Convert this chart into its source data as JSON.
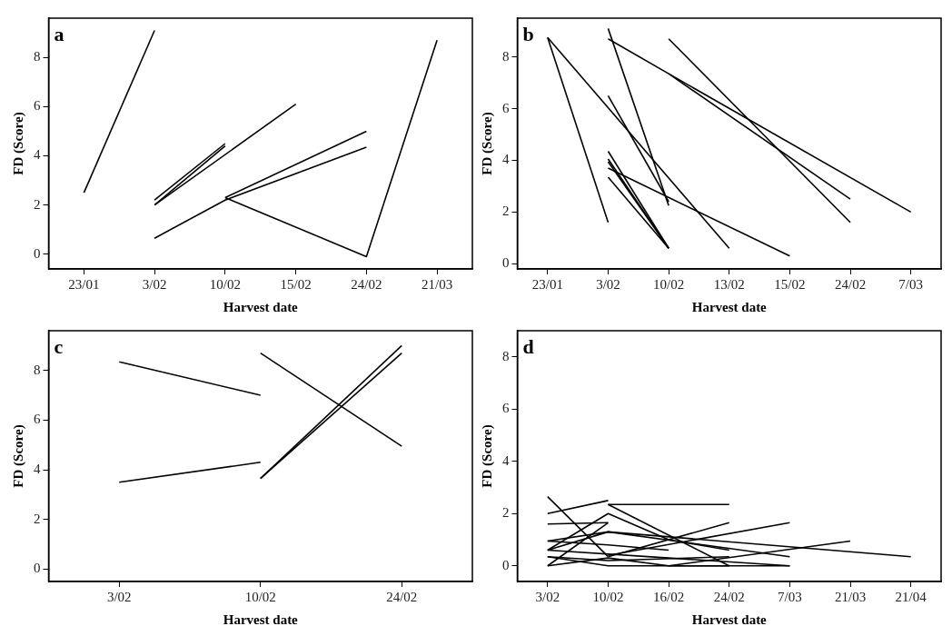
{
  "chart_data": [
    {
      "type": "line",
      "annotations": [
        "a"
      ],
      "xlabel": "Harvest date",
      "ylabel": "FD (Score)",
      "categories": [
        "23/01",
        "3/02",
        "10/02",
        "15/02",
        "24/02",
        "21/03"
      ],
      "ylim": [
        -0.6,
        9.6
      ],
      "yticks": [
        0,
        2,
        4,
        6,
        8
      ],
      "grid": false,
      "legend": false,
      "series": [
        {
          "color": "#000000",
          "x": [
            "23/01",
            "3/02"
          ],
          "values": [
            2.5,
            9.1
          ]
        },
        {
          "color": "#000000",
          "x": [
            "3/02",
            "10/02"
          ],
          "values": [
            2.2,
            4.5
          ]
        },
        {
          "color": "#000000",
          "x": [
            "3/02",
            "10/02"
          ],
          "values": [
            2.0,
            4.4
          ]
        },
        {
          "color": "#000000",
          "x": [
            "3/02",
            "15/02"
          ],
          "values": [
            2.0,
            6.1
          ]
        },
        {
          "color": "#000000",
          "x": [
            "3/02",
            "10/02",
            "24/02"
          ],
          "values": [
            0.65,
            2.2,
            4.35
          ]
        },
        {
          "color": "#000000",
          "x": [
            "10/02",
            "24/02"
          ],
          "values": [
            2.3,
            5.0
          ]
        },
        {
          "color": "#000000",
          "x": [
            "10/02",
            "24/02",
            "21/03"
          ],
          "values": [
            2.3,
            -0.1,
            8.7
          ]
        }
      ]
    },
    {
      "type": "line",
      "annotations": [
        "b"
      ],
      "xlabel": "Harvest date",
      "ylabel": "FD (Score)",
      "categories": [
        "23/01",
        "3/02",
        "10/02",
        "13/02",
        "15/02",
        "24/02",
        "7/03"
      ],
      "ylim": [
        -0.2,
        9.5
      ],
      "yticks": [
        0,
        2,
        4,
        6,
        8
      ],
      "grid": false,
      "legend": false,
      "series": [
        {
          "color": "#000000",
          "x": [
            "23/01",
            "3/02"
          ],
          "values": [
            8.75,
            1.6
          ]
        },
        {
          "color": "#000000",
          "x": [
            "23/01",
            "13/02"
          ],
          "values": [
            8.75,
            0.6
          ]
        },
        {
          "color": "#000000",
          "x": [
            "3/02",
            "10/02"
          ],
          "values": [
            9.1,
            2.25
          ]
        },
        {
          "color": "#000000",
          "x": [
            "3/02",
            "10/02",
            "24/02"
          ],
          "values": [
            8.7,
            7.35,
            2.5
          ]
        },
        {
          "color": "#000000",
          "x": [
            "10/02",
            "7/03"
          ],
          "values": [
            7.35,
            2.0
          ]
        },
        {
          "color": "#000000",
          "x": [
            "10/02",
            "24/02"
          ],
          "values": [
            8.7,
            1.6
          ]
        },
        {
          "color": "#000000",
          "x": [
            "3/02",
            "10/02"
          ],
          "values": [
            6.5,
            2.4
          ]
        },
        {
          "color": "#000000",
          "x": [
            "3/02",
            "15/02"
          ],
          "values": [
            3.7,
            0.3
          ]
        },
        {
          "color": "#000000",
          "x": [
            "3/02",
            "10/02"
          ],
          "values": [
            4.35,
            0.6
          ]
        },
        {
          "color": "#000000",
          "x": [
            "3/02",
            "10/02"
          ],
          "values": [
            4.05,
            0.6
          ]
        },
        {
          "color": "#000000",
          "x": [
            "3/02",
            "10/02"
          ],
          "values": [
            3.95,
            0.6
          ]
        },
        {
          "color": "#000000",
          "x": [
            "3/02",
            "10/02"
          ],
          "values": [
            3.35,
            0.6
          ]
        }
      ]
    },
    {
      "type": "line",
      "annotations": [
        "c"
      ],
      "xlabel": "Harvest date",
      "ylabel": "FD (Score)",
      "categories": [
        "3/02",
        "10/02",
        "24/02"
      ],
      "ylim": [
        -0.5,
        9.6
      ],
      "yticks": [
        0,
        2,
        4,
        6,
        8
      ],
      "grid": false,
      "legend": false,
      "series": [
        {
          "color": "#000000",
          "x": [
            "3/02",
            "10/02"
          ],
          "values": [
            8.35,
            7.0
          ]
        },
        {
          "color": "#000000",
          "x": [
            "3/02",
            "10/02"
          ],
          "values": [
            3.5,
            4.3
          ]
        },
        {
          "color": "#000000",
          "x": [
            "10/02",
            "24/02"
          ],
          "values": [
            8.7,
            4.95
          ]
        },
        {
          "color": "#000000",
          "x": [
            "10/02",
            "24/02"
          ],
          "values": [
            3.65,
            9.0
          ]
        },
        {
          "color": "#000000",
          "x": [
            "10/02",
            "24/02"
          ],
          "values": [
            3.65,
            8.7
          ]
        }
      ]
    },
    {
      "type": "line",
      "annotations": [
        "d"
      ],
      "xlabel": "Harvest date",
      "ylabel": "FD (Score)",
      "categories": [
        "3/02",
        "10/02",
        "16/02",
        "24/02",
        "7/03",
        "21/03",
        "21/04"
      ],
      "ylim": [
        -0.6,
        9.0
      ],
      "yticks": [
        0,
        2,
        4,
        6,
        8
      ],
      "grid": false,
      "legend": false,
      "series": [
        {
          "color": "#000000",
          "x": [
            "3/02",
            "10/02"
          ],
          "values": [
            2.65,
            0.35
          ]
        },
        {
          "color": "#000000",
          "x": [
            "3/02",
            "10/02"
          ],
          "values": [
            2.0,
            2.5
          ]
        },
        {
          "color": "#000000",
          "x": [
            "10/02",
            "24/02"
          ],
          "values": [
            2.35,
            2.35
          ]
        },
        {
          "color": "#000000",
          "x": [
            "10/02",
            "24/02"
          ],
          "values": [
            2.35,
            0
          ]
        },
        {
          "color": "#000000",
          "x": [
            "3/02",
            "10/02"
          ],
          "values": [
            1.6,
            1.65
          ]
        },
        {
          "color": "#000000",
          "x": [
            "3/02",
            "10/02"
          ],
          "values": [
            0,
            1.65
          ]
        },
        {
          "color": "#000000",
          "x": [
            "3/02",
            "10/02",
            "16/02",
            "24/02"
          ],
          "values": [
            0.6,
            2.0,
            1.0,
            0.6
          ]
        },
        {
          "color": "#000000",
          "x": [
            "3/02",
            "10/02",
            "7/03"
          ],
          "values": [
            0.95,
            1.3,
            0.35
          ]
        },
        {
          "color": "#000000",
          "x": [
            "3/02",
            "10/02",
            "21/04"
          ],
          "values": [
            0.6,
            1.3,
            0.35
          ]
        },
        {
          "color": "#000000",
          "x": [
            "3/02",
            "10/02",
            "16/02"
          ],
          "values": [
            0.95,
            0.8,
            0.6
          ]
        },
        {
          "color": "#000000",
          "x": [
            "10/02",
            "24/02"
          ],
          "values": [
            0.35,
            1.65
          ]
        },
        {
          "color": "#000000",
          "x": [
            "10/02",
            "7/03"
          ],
          "values": [
            0.4,
            1.65
          ]
        },
        {
          "color": "#000000",
          "x": [
            "16/02",
            "21/03"
          ],
          "values": [
            0,
            0.95
          ]
        },
        {
          "color": "#000000",
          "x": [
            "3/02",
            "10/02",
            "7/03"
          ],
          "values": [
            0.35,
            0,
            0
          ]
        },
        {
          "color": "#000000",
          "x": [
            "3/02",
            "10/02",
            "24/02"
          ],
          "values": [
            0.35,
            0.2,
            0.35
          ]
        },
        {
          "color": "#000000",
          "x": [
            "3/02",
            "16/02",
            "7/03"
          ],
          "values": [
            0.6,
            0.3,
            0
          ]
        },
        {
          "color": "#000000",
          "x": [
            "3/02",
            "10/02",
            "16/02",
            "24/02"
          ],
          "values": [
            0,
            0.3,
            0,
            0
          ]
        }
      ]
    }
  ]
}
